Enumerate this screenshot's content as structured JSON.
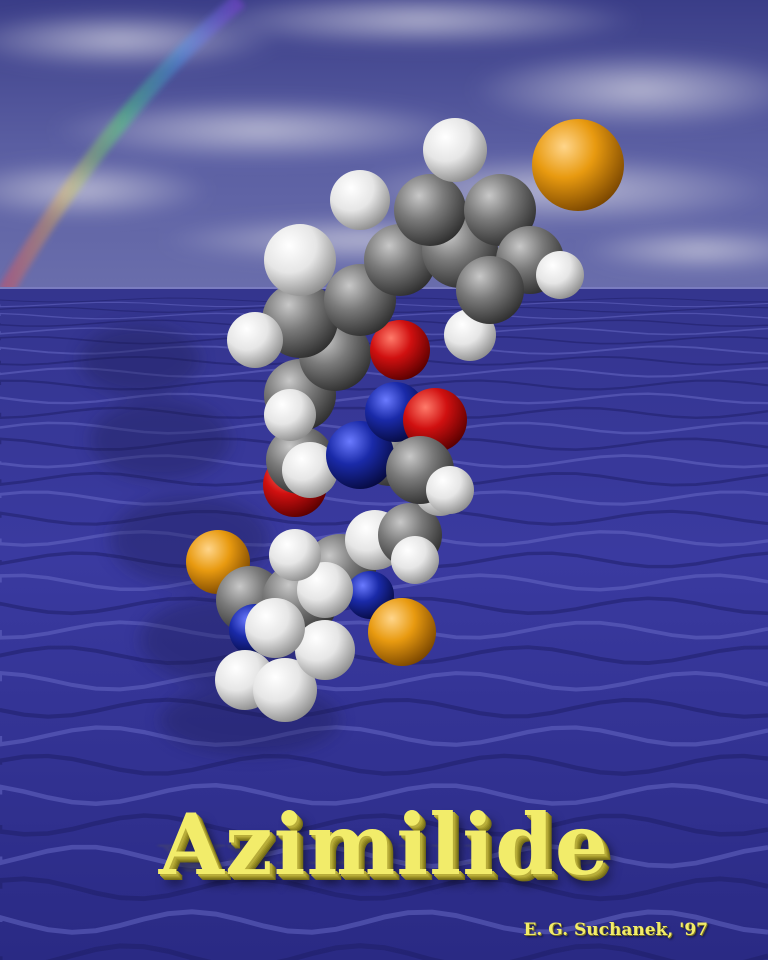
{
  "title": "Azimilide",
  "credit": "E. G. Suchanek, '97",
  "colors": {
    "sky": "#4a4e96",
    "sea": "#2c2c86",
    "carbon": "#6e6e6e",
    "hydrogen": "#f2f2f2",
    "oxygen": "#d01010",
    "nitrogen": "#1a2aa8",
    "chlorine": "#e89a10",
    "title": "#f2ec6a"
  }
}
